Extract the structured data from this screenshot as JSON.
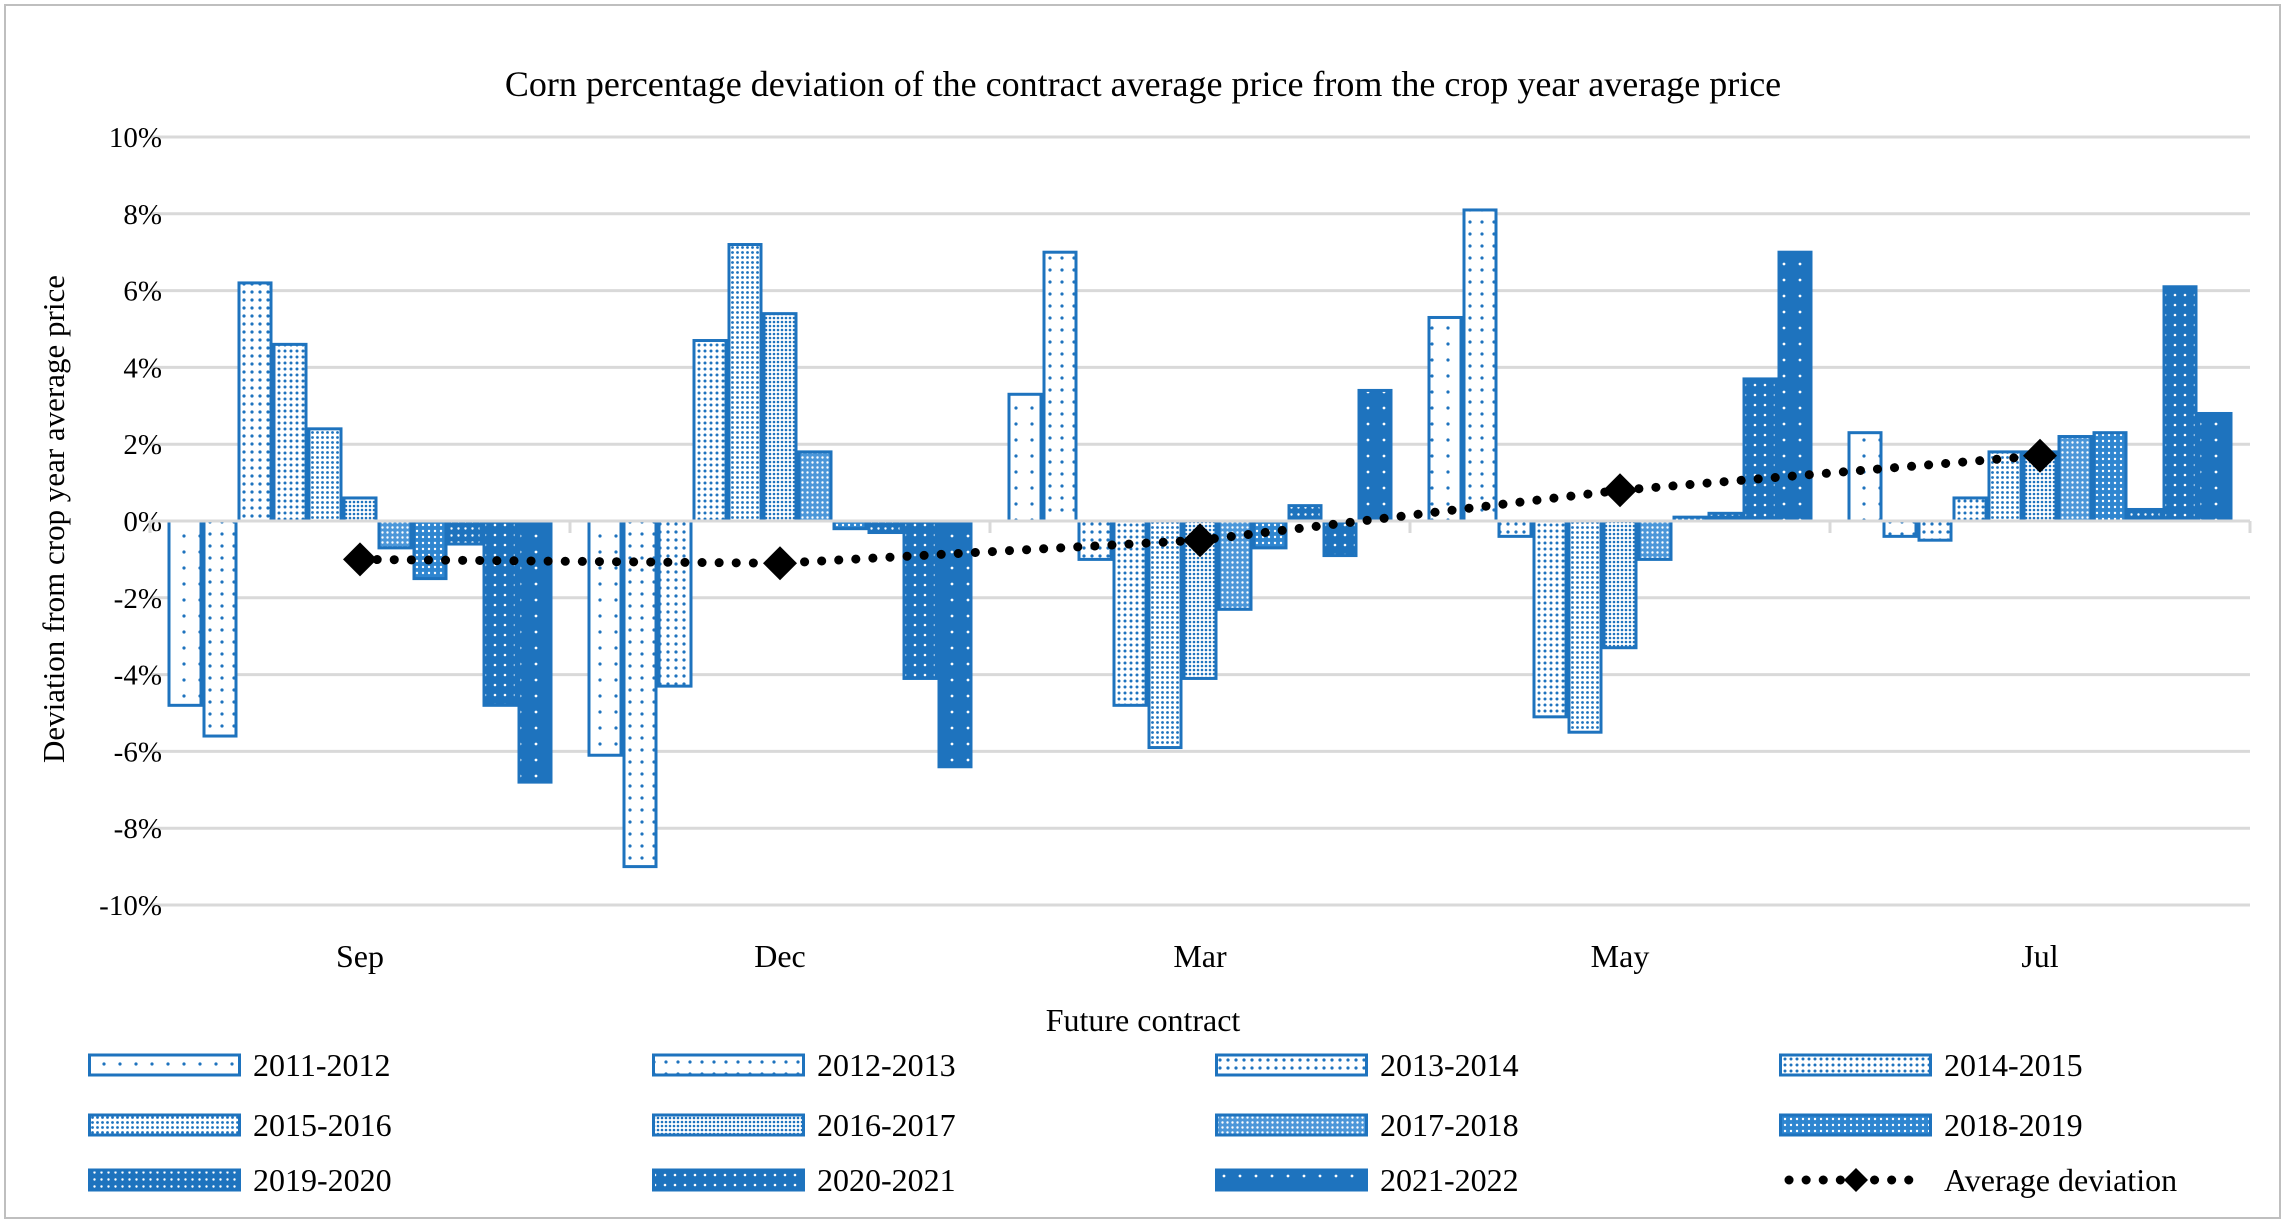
{
  "chart_data": {
    "type": "bar",
    "title": "Corn percentage deviation of the contract average price from the crop year average price",
    "xlabel": "Future contract",
    "ylabel": "Deviation from crop year average price",
    "ylim": [
      -10,
      10
    ],
    "y_ticks": [
      10,
      8,
      6,
      4,
      2,
      0,
      -2,
      -4,
      -6,
      -8,
      -10
    ],
    "y_tick_labels": [
      "10%",
      "8%",
      "6%",
      "4%",
      "2%",
      "0%",
      "-2%",
      "-4%",
      "-6%",
      "-8%",
      "-10%"
    ],
    "categories": [
      "Sep",
      "Dec",
      "Mar",
      "May",
      "Jul"
    ],
    "grid": true,
    "legend_position": "bottom",
    "series": [
      {
        "name": "2011-2012",
        "values": [
          -4.8,
          -6.1,
          3.3,
          5.3,
          2.3
        ]
      },
      {
        "name": "2012-2013",
        "values": [
          -5.6,
          -9.0,
          7.0,
          8.1,
          -0.4
        ]
      },
      {
        "name": "2013-2014",
        "values": [
          6.2,
          -4.3,
          -1.0,
          -0.4,
          -0.5
        ]
      },
      {
        "name": "2014-2015",
        "values": [
          4.6,
          4.7,
          -4.8,
          -5.1,
          0.6
        ]
      },
      {
        "name": "2015-2016",
        "values": [
          2.4,
          7.2,
          -5.9,
          -5.5,
          1.8
        ]
      },
      {
        "name": "2016-2017",
        "values": [
          0.6,
          5.4,
          -4.1,
          -3.3,
          1.8
        ]
      },
      {
        "name": "2017-2018",
        "values": [
          -0.7,
          1.8,
          -2.3,
          -1.0,
          2.2
        ]
      },
      {
        "name": "2018-2019",
        "values": [
          -1.5,
          -0.2,
          -0.7,
          0.1,
          2.3
        ]
      },
      {
        "name": "2019-2020",
        "values": [
          -0.6,
          -0.3,
          0.4,
          0.2,
          0.3
        ]
      },
      {
        "name": "2020-2021",
        "values": [
          -4.8,
          -4.1,
          -0.9,
          3.7,
          6.1
        ]
      },
      {
        "name": "2021-2022",
        "values": [
          -6.8,
          -6.4,
          3.4,
          7.0,
          2.8
        ]
      }
    ],
    "average_series": {
      "name": "Average deviation",
      "values": [
        -1.0,
        -1.1,
        -0.5,
        0.8,
        1.7
      ]
    }
  }
}
